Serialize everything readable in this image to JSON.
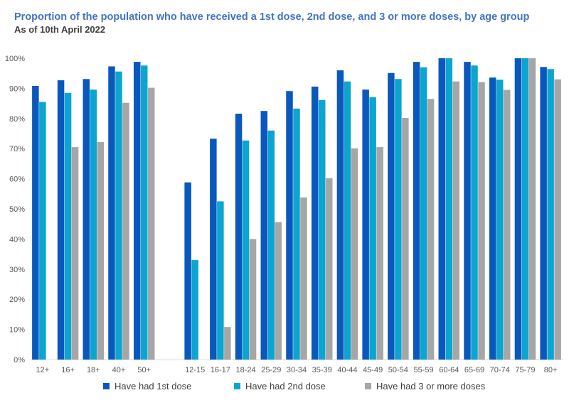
{
  "title": "Proportion of the population who have received a 1st dose, 2nd dose, and 3 or more doses, by age group",
  "subtitle": "As of 10th April 2022",
  "chart_data": {
    "type": "bar",
    "categories": [
      "12+",
      "16+",
      "18+",
      "40+",
      "50+",
      "",
      "12-15",
      "16-17",
      "18-24",
      "25-29",
      "30-34",
      "35-39",
      "40-44",
      "45-49",
      "50-54",
      "55-59",
      "60-64",
      "65-69",
      "70-74",
      "75-79",
      "80+"
    ],
    "series": [
      {
        "name": "Have had 1st dose",
        "color": "#0A58BE",
        "values": [
          90.8,
          92.7,
          93.1,
          97.3,
          98.8,
          null,
          58.8,
          73.3,
          81.6,
          82.5,
          89.1,
          90.6,
          96.0,
          89.6,
          95.1,
          98.8,
          100.0,
          98.8,
          93.6,
          100.0,
          97.1
        ]
      },
      {
        "name": "Have had 2nd dose",
        "color": "#0BA5CF",
        "values": [
          85.5,
          88.5,
          89.6,
          95.6,
          97.6,
          null,
          33.0,
          52.5,
          72.7,
          76.0,
          83.3,
          86.1,
          92.3,
          87.1,
          93.1,
          97.0,
          100.0,
          97.6,
          92.9,
          100.0,
          96.4
        ]
      },
      {
        "name": "Have had 3 or more doses",
        "color": "#A6A6A6",
        "values": [
          null,
          70.5,
          72.2,
          85.2,
          90.2,
          null,
          null,
          10.8,
          40.0,
          45.6,
          53.8,
          60.2,
          70.1,
          70.5,
          80.2,
          86.5,
          92.3,
          92.1,
          89.5,
          100.0,
          93.0
        ]
      }
    ],
    "yticks": [
      "0%",
      "10%",
      "20%",
      "30%",
      "40%",
      "50%",
      "60%",
      "70%",
      "80%",
      "90%",
      "100%"
    ],
    "ylim": [
      0,
      100
    ],
    "xlabel": "",
    "ylabel": "",
    "legend_position": "bottom",
    "grid": false
  }
}
